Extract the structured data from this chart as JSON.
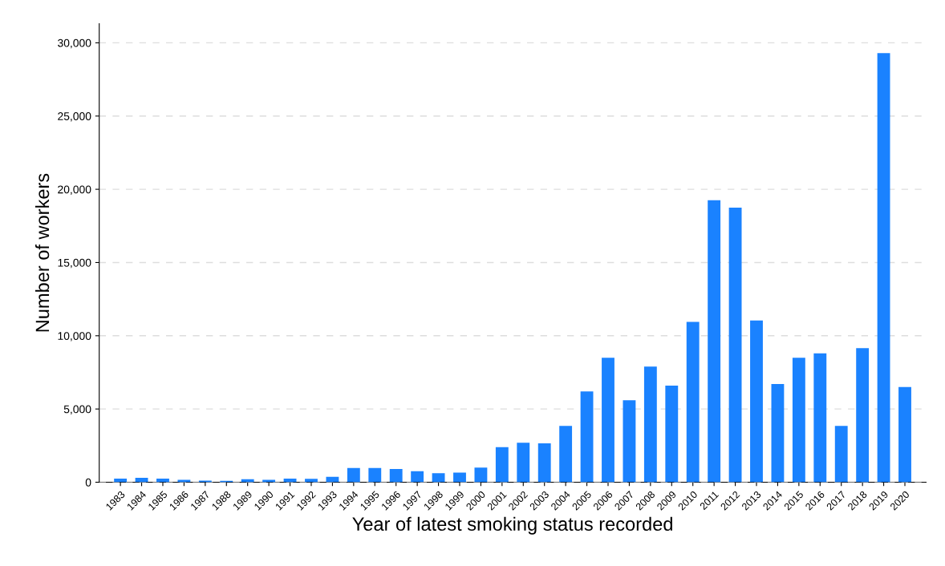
{
  "chart_data": {
    "type": "bar",
    "xlabel": "Year of latest smoking status recorded",
    "ylabel": "Number of workers",
    "categories": [
      "1983",
      "1984",
      "1985",
      "1986",
      "1987",
      "1988",
      "1989",
      "1990",
      "1991",
      "1992",
      "1993",
      "1994",
      "1995",
      "1996",
      "1997",
      "1998",
      "1999",
      "2000",
      "2001",
      "2002",
      "2003",
      "2004",
      "2005",
      "2006",
      "2007",
      "2008",
      "2009",
      "2010",
      "2011",
      "2012",
      "2013",
      "2014",
      "2015",
      "2016",
      "2017",
      "2018",
      "2019",
      "2020"
    ],
    "values": [
      250,
      300,
      250,
      160,
      110,
      90,
      200,
      160,
      250,
      240,
      370,
      970,
      970,
      900,
      750,
      620,
      660,
      1000,
      2400,
      2700,
      2650,
      3850,
      6200,
      8500,
      5600,
      7900,
      6600,
      10950,
      19250,
      18750,
      11050,
      6700,
      8500,
      8800,
      3850,
      9150,
      29300,
      6500
    ],
    "color": "#1a82ff",
    "ylim": [
      0,
      31300
    ],
    "yticks": [
      {
        "value": 0,
        "label": "0"
      },
      {
        "value": 5000,
        "label": "5,000"
      },
      {
        "value": 10000,
        "label": "10,000"
      },
      {
        "value": 15000,
        "label": "15,000"
      },
      {
        "value": 20000,
        "label": "20,000"
      },
      {
        "value": 25000,
        "label": "25,000"
      },
      {
        "value": 30000,
        "label": "30,000"
      }
    ],
    "grid": "y"
  }
}
